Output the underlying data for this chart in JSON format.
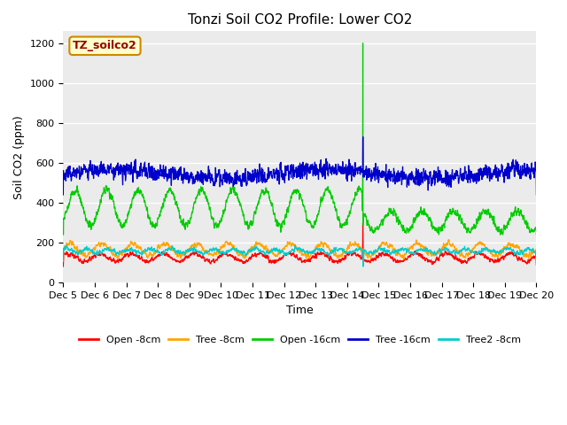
{
  "title": "Tonzi Soil CO2 Profile: Lower CO2",
  "ylabel": "Soil CO2 (ppm)",
  "xlabel": "Time",
  "watermark_text": "TZ_soilco2",
  "ylim": [
    0,
    1260
  ],
  "yticks": [
    0,
    200,
    400,
    600,
    800,
    1000,
    1200
  ],
  "xtick_labels": [
    "Dec 5",
    "Dec 6",
    "Dec 7",
    "Dec 8",
    "Dec 9",
    "Dec 10",
    "Dec 11",
    "Dec 12",
    "Dec 13",
    "Dec 14",
    "Dec 15",
    "Dec 16",
    "Dec 17",
    "Dec 18",
    "Dec 19",
    "Dec 20"
  ],
  "fig_bg_color": "#ffffff",
  "plot_bg_color": "#ebebeb",
  "grid_color": "#ffffff",
  "series": [
    {
      "label": "Open -8cm",
      "color": "#ff0000"
    },
    {
      "label": "Tree -8cm",
      "color": "#ffa500"
    },
    {
      "label": "Open -16cm",
      "color": "#00cc00"
    },
    {
      "label": "Tree -16cm",
      "color": "#0000cc"
    },
    {
      "label": "Tree2 -8cm",
      "color": "#00cccc"
    }
  ],
  "title_fontsize": 11,
  "tick_fontsize": 8,
  "label_fontsize": 9
}
